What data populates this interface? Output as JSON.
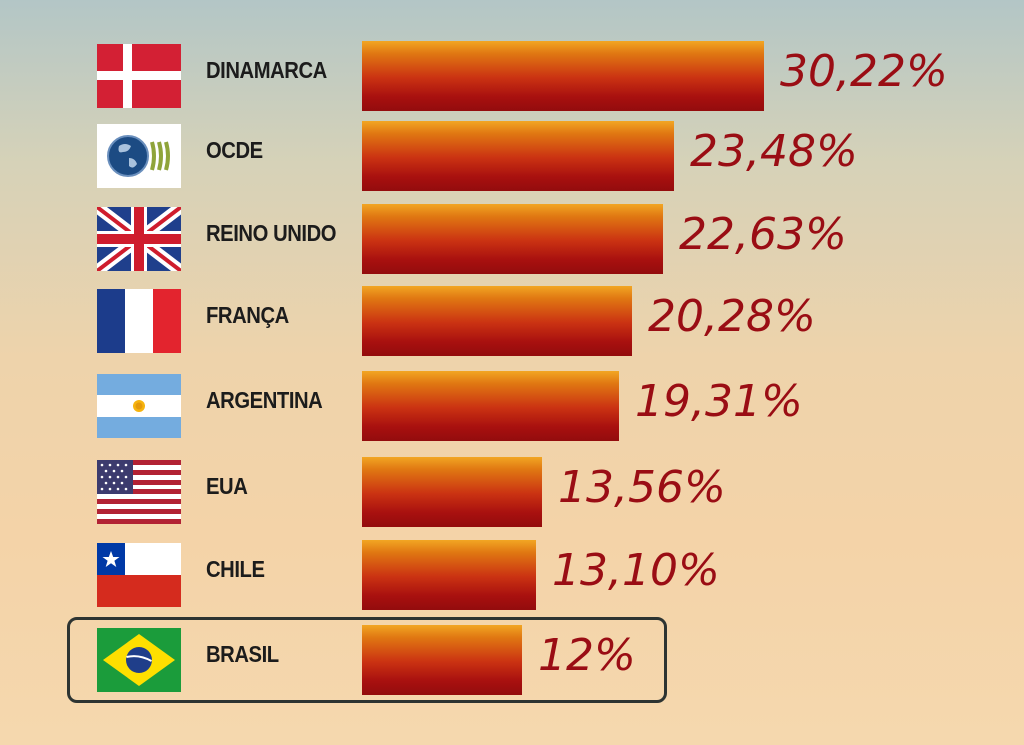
{
  "chart_data": {
    "type": "bar",
    "orientation": "horizontal",
    "categories": [
      "DINAMARCA",
      "OCDE",
      "REINO UNIDO",
      "FRANÇA",
      "ARGENTINA",
      "EUA",
      "CHILE",
      "BRASIL"
    ],
    "values": [
      30.22,
      23.48,
      22.63,
      20.28,
      19.31,
      13.56,
      13.1,
      12
    ],
    "value_labels": [
      "30,22%",
      "23,48%",
      "22,63%",
      "20,28%",
      "19,31%",
      "13,56%",
      "13,10%",
      "12%"
    ],
    "flags": [
      "denmark-flag-icon",
      "oecd-logo-icon",
      "uk-flag-icon",
      "france-flag-icon",
      "argentina-flag-icon",
      "usa-flag-icon",
      "chile-flag-icon",
      "brazil-flag-icon"
    ],
    "highlighted_category": "BRASIL",
    "xlim": [
      0,
      30.22
    ],
    "grid": false,
    "legend": "none",
    "colors": {
      "bar_top": "#f2a623",
      "bar_bottom": "#930c0d",
      "value_text": "#9a0d14",
      "label_text": "#1c1c1c",
      "highlight_border": "#2d3432"
    }
  }
}
